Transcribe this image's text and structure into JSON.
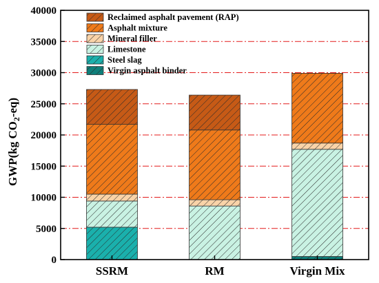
{
  "chart_data": {
    "type": "bar",
    "stacked": true,
    "categories": [
      "SSRM",
      "RM",
      "Virgin Mix"
    ],
    "series": [
      {
        "name": "Virgin asphalt binder",
        "values": [
          0,
          0,
          500
        ],
        "color": "#0f7f7a",
        "pattern": "diag"
      },
      {
        "name": "Steel slag",
        "values": [
          5200,
          0,
          0
        ],
        "color": "#1ab0ac",
        "pattern": "diag"
      },
      {
        "name": "Limestone",
        "values": [
          4200,
          8600,
          17200
        ],
        "color": "#c9f2e3",
        "pattern": "diag"
      },
      {
        "name": "Mineral filler",
        "values": [
          1100,
          1000,
          1000
        ],
        "color": "#f9d3a8",
        "pattern": "diag"
      },
      {
        "name": "Asphalt mixture",
        "values": [
          11200,
          11200,
          11200
        ],
        "color": "#ef7a1a",
        "pattern": "diag"
      },
      {
        "name": "Reclaimed asphalt pavement (RAP)",
        "values": [
          5600,
          5600,
          0
        ],
        "color": "#c65a16",
        "pattern": "diag"
      }
    ],
    "ylabel_main": "GWP(kg CO",
    "ylabel_sub": "2",
    "ylabel_tail": "-eq)",
    "ylim": [
      0,
      40000
    ],
    "yticks": [
      "0",
      "5000",
      "10000",
      "15000",
      "20000",
      "25000",
      "30000",
      "35000",
      "40000"
    ],
    "grid": "horizontal dash-dot red",
    "legend_placement": "top-left"
  }
}
